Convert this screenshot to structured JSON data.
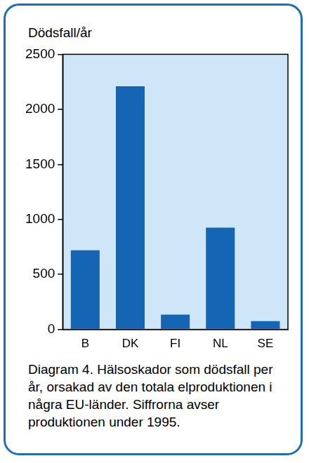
{
  "chart_data": {
    "type": "bar",
    "ylabel": "Dödsfall/år",
    "caption": "Diagram 4. Hälsoskador som dödsfall per år, orsakad av den totala elproduktionen i några EU-länder. Siffrorna avser produktionen under 1995.",
    "categories": [
      "B",
      "DK",
      "FI",
      "NL",
      "SE"
    ],
    "values": [
      720,
      2210,
      135,
      925,
      75
    ],
    "color": "#1565b5",
    "ylim": [
      0,
      2500
    ],
    "yticks": [
      0,
      500,
      1000,
      1500,
      2000,
      2500
    ],
    "grid": false
  }
}
